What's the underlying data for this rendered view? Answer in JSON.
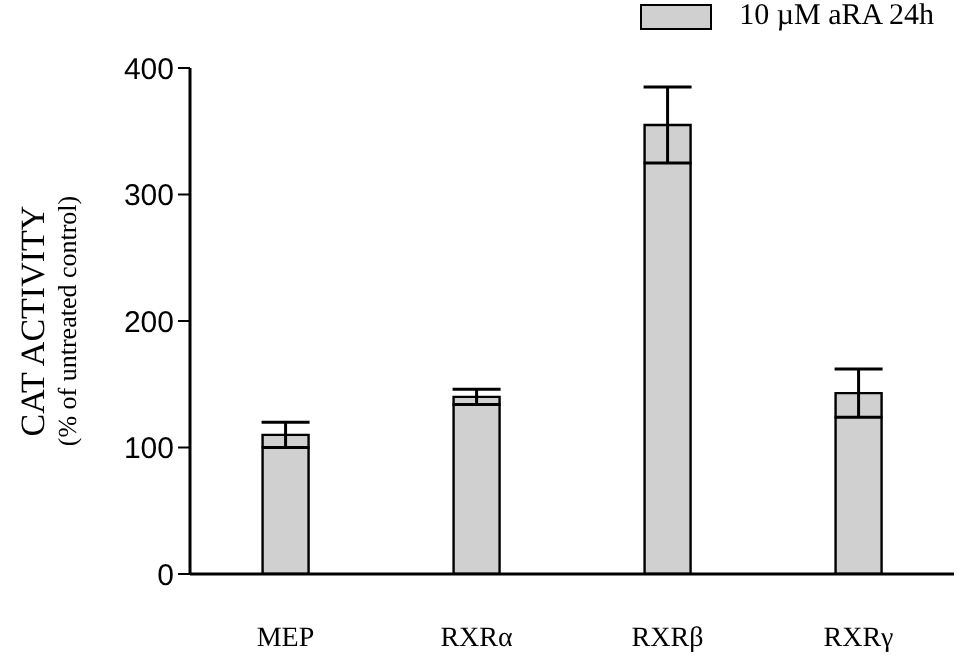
{
  "chart_data": {
    "type": "bar",
    "ylabel": "CAT ACTIVITY\n(% of untreated control)",
    "categories": [
      "MEP",
      "RXRα",
      "RXRβ",
      "RXRγ"
    ],
    "series": [
      {
        "name": "10 µM aRA 24h",
        "color": "#d0d0d0",
        "values": [
          110,
          140,
          355,
          143
        ],
        "errors": [
          10,
          6,
          30,
          19
        ]
      }
    ],
    "ylim": [
      0,
      400
    ],
    "yticks": [
      0,
      100,
      200,
      300,
      400
    ],
    "legend": "top right"
  }
}
